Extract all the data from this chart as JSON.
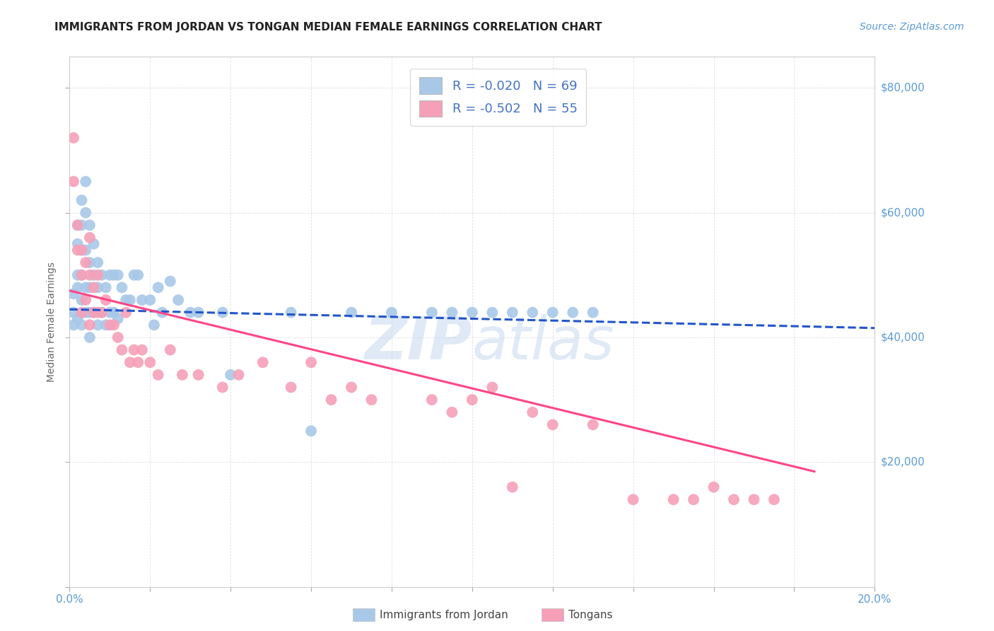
{
  "title": "IMMIGRANTS FROM JORDAN VS TONGAN MEDIAN FEMALE EARNINGS CORRELATION CHART",
  "source": "Source: ZipAtlas.com",
  "ylabel": "Median Female Earnings",
  "legend_jordan_r": "R = -0.020",
  "legend_jordan_n": "N = 69",
  "legend_tongan_r": "R = -0.502",
  "legend_tongan_n": "N = 55",
  "jordan_color": "#a8c8e8",
  "tongan_color": "#f5a0b8",
  "jordan_line_color": "#2255cc",
  "tongan_line_color": "#ff4488",
  "jordan_line_style": "--",
  "tongan_line_style": "-",
  "xmin": 0.0,
  "xmax": 0.2,
  "ymin": 0,
  "ymax": 85000,
  "jordan_line_x": [
    0.0,
    0.2
  ],
  "jordan_line_y": [
    44500,
    41500
  ],
  "tongan_line_x": [
    0.0,
    0.185
  ],
  "tongan_line_y": [
    47500,
    18500
  ],
  "jordan_points_x": [
    0.001,
    0.001,
    0.001,
    0.002,
    0.002,
    0.002,
    0.002,
    0.002,
    0.003,
    0.003,
    0.003,
    0.003,
    0.003,
    0.003,
    0.004,
    0.004,
    0.004,
    0.004,
    0.004,
    0.005,
    0.005,
    0.005,
    0.005,
    0.005,
    0.006,
    0.006,
    0.006,
    0.007,
    0.007,
    0.007,
    0.008,
    0.008,
    0.009,
    0.009,
    0.01,
    0.01,
    0.011,
    0.011,
    0.012,
    0.012,
    0.013,
    0.014,
    0.015,
    0.016,
    0.017,
    0.018,
    0.02,
    0.021,
    0.022,
    0.023,
    0.025,
    0.027,
    0.03,
    0.032,
    0.038,
    0.04,
    0.055,
    0.06,
    0.07,
    0.08,
    0.09,
    0.095,
    0.1,
    0.105,
    0.11,
    0.115,
    0.12,
    0.125,
    0.13
  ],
  "jordan_points_y": [
    47000,
    44000,
    42000,
    58000,
    55000,
    50000,
    48000,
    43000,
    62000,
    58000,
    54000,
    50000,
    46000,
    42000,
    65000,
    60000,
    54000,
    48000,
    44000,
    58000,
    52000,
    48000,
    44000,
    40000,
    55000,
    50000,
    44000,
    52000,
    48000,
    42000,
    50000,
    44000,
    48000,
    42000,
    50000,
    44000,
    50000,
    44000,
    50000,
    43000,
    48000,
    46000,
    46000,
    50000,
    50000,
    46000,
    46000,
    42000,
    48000,
    44000,
    49000,
    46000,
    44000,
    44000,
    44000,
    34000,
    44000,
    25000,
    44000,
    44000,
    44000,
    44000,
    44000,
    44000,
    44000,
    44000,
    44000,
    44000,
    44000
  ],
  "tongan_points_x": [
    0.001,
    0.001,
    0.002,
    0.002,
    0.003,
    0.003,
    0.003,
    0.004,
    0.004,
    0.005,
    0.005,
    0.005,
    0.006,
    0.006,
    0.007,
    0.007,
    0.008,
    0.009,
    0.01,
    0.011,
    0.012,
    0.013,
    0.014,
    0.015,
    0.016,
    0.017,
    0.018,
    0.02,
    0.022,
    0.025,
    0.028,
    0.032,
    0.038,
    0.042,
    0.048,
    0.055,
    0.06,
    0.065,
    0.07,
    0.075,
    0.09,
    0.095,
    0.1,
    0.105,
    0.11,
    0.115,
    0.12,
    0.13,
    0.14,
    0.15,
    0.155,
    0.16,
    0.165,
    0.17,
    0.175
  ],
  "tongan_points_y": [
    72000,
    65000,
    58000,
    54000,
    54000,
    50000,
    44000,
    52000,
    46000,
    56000,
    50000,
    42000,
    48000,
    44000,
    50000,
    44000,
    44000,
    46000,
    42000,
    42000,
    40000,
    38000,
    44000,
    36000,
    38000,
    36000,
    38000,
    36000,
    34000,
    38000,
    34000,
    34000,
    32000,
    34000,
    36000,
    32000,
    36000,
    30000,
    32000,
    30000,
    30000,
    28000,
    30000,
    32000,
    16000,
    28000,
    26000,
    26000,
    14000,
    14000,
    14000,
    16000,
    14000,
    14000,
    14000
  ],
  "watermark_zip": "ZIP",
  "watermark_atlas": "atlas",
  "bottom_legend_jordan": "Immigrants from Jordan",
  "bottom_legend_tongan": "Tongans",
  "title_fontsize": 11,
  "source_fontsize": 10,
  "legend_fontsize": 12,
  "axis_label_fontsize": 10,
  "tick_label_color": "#5b9bd5",
  "axis_label_color": "#666666",
  "grid_color": "#d8d8d8",
  "legend_text_color": "#4472c4"
}
